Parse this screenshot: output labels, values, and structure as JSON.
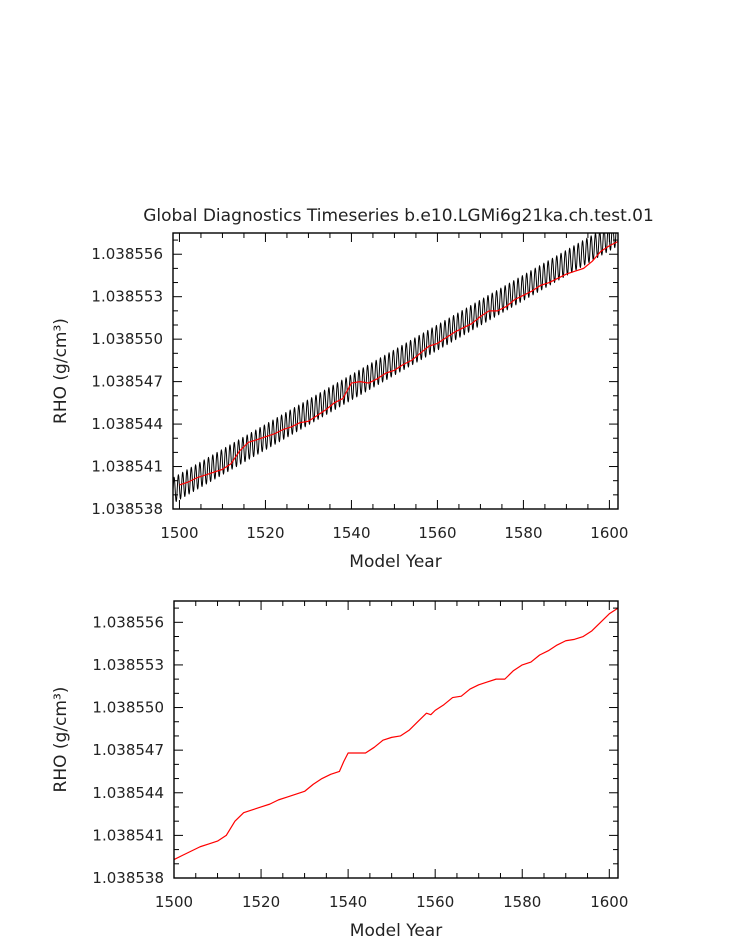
{
  "chart_data": [
    {
      "type": "line",
      "title": "Global Diagnostics Timeseries b.e10.LGMi6g21ka.ch.test.01",
      "xlabel": "Model Year",
      "ylabel": "RHO (g/cm³)",
      "xlim": [
        1498.5,
        1602
      ],
      "ylim": [
        1.038538,
        1.0385575
      ],
      "x_ticks": [
        1500,
        1520,
        1540,
        1560,
        1580,
        1600
      ],
      "y_ticks": [
        1.038538,
        1.038541,
        1.038544,
        1.038547,
        1.03855,
        1.038553,
        1.038556
      ],
      "y_tick_labels": [
        "1.038538",
        "1.038541",
        "1.038544",
        "1.038547",
        "1.038550",
        "1.038553",
        "1.038556"
      ],
      "series": [
        {
          "color": "#000000",
          "style": "monthly, oscillating about the annual mean",
          "x": [
            1498.5,
            1602
          ],
          "values": [
            1.0385393,
            1.0385575
          ],
          "amplitude": 9e-07
        },
        {
          "color": "#ff0000",
          "style": "annual mean",
          "x": [
            1500,
            1502,
            1504,
            1506,
            1508,
            1510,
            1512,
            1514,
            1516,
            1518,
            1520,
            1522,
            1524,
            1526,
            1528,
            1530,
            1532,
            1534,
            1536,
            1538,
            1540,
            1542,
            1544,
            1546,
            1548,
            1550,
            1552,
            1554,
            1556,
            1558,
            1560,
            1562,
            1564,
            1566,
            1568,
            1570,
            1572,
            1574,
            1576,
            1578,
            1580,
            1582,
            1584,
            1586,
            1588,
            1590,
            1592,
            1594,
            1596,
            1598,
            1600,
            1602
          ],
          "values": [
            1.0385397,
            1.0385399,
            1.0385402,
            1.0385404,
            1.0385406,
            1.0385408,
            1.0385412,
            1.0385421,
            1.0385427,
            1.0385429,
            1.0385431,
            1.0385433,
            1.0385436,
            1.0385438,
            1.0385441,
            1.0385442,
            1.0385446,
            1.038545,
            1.0385455,
            1.0385458,
            1.0385469,
            1.038547,
            1.0385469,
            1.0385472,
            1.0385476,
            1.0385478,
            1.0385482,
            1.0385485,
            1.038549,
            1.0385495,
            1.0385497,
            1.0385501,
            1.0385505,
            1.0385508,
            1.0385511,
            1.0385516,
            1.038552,
            1.038552,
            1.0385523,
            1.0385528,
            1.0385531,
            1.0385534,
            1.0385538,
            1.038554,
            1.0385543,
            1.0385546,
            1.0385548,
            1.038555,
            1.0385555,
            1.0385562,
            1.0385566,
            1.0385569
          ]
        }
      ]
    },
    {
      "type": "line",
      "title": "",
      "xlabel": "Model Year",
      "ylabel": "RHO (g/cm³)",
      "xlim": [
        1500,
        1602
      ],
      "ylim": [
        1.038538,
        1.0385575
      ],
      "x_ticks": [
        1500,
        1520,
        1540,
        1560,
        1580,
        1600
      ],
      "y_ticks": [
        1.038538,
        1.038541,
        1.038544,
        1.038547,
        1.03855,
        1.038553,
        1.038556
      ],
      "y_tick_labels": [
        "1.038538",
        "1.038541",
        "1.038544",
        "1.038547",
        "1.038550",
        "1.038553",
        "1.038556"
      ],
      "series": [
        {
          "color": "#ff0000",
          "style": "annual mean",
          "x": [
            1500,
            1502,
            1504,
            1506,
            1508,
            1510,
            1512,
            1514,
            1516,
            1518,
            1520,
            1522,
            1524,
            1526,
            1528,
            1530,
            1532,
            1534,
            1536,
            1538,
            1539,
            1540,
            1542,
            1544,
            1546,
            1548,
            1550,
            1552,
            1554,
            1556,
            1558,
            1559,
            1560,
            1562,
            1564,
            1566,
            1568,
            1570,
            1572,
            1574,
            1576,
            1578,
            1580,
            1582,
            1584,
            1586,
            1588,
            1590,
            1592,
            1594,
            1596,
            1598,
            1600,
            1602
          ],
          "values": [
            1.0385393,
            1.0385396,
            1.0385399,
            1.0385402,
            1.0385404,
            1.0385406,
            1.038541,
            1.038542,
            1.0385426,
            1.0385428,
            1.038543,
            1.0385432,
            1.0385435,
            1.0385437,
            1.0385439,
            1.0385441,
            1.0385446,
            1.038545,
            1.0385453,
            1.0385455,
            1.0385462,
            1.0385468,
            1.0385468,
            1.0385468,
            1.0385472,
            1.0385477,
            1.0385479,
            1.038548,
            1.0385484,
            1.038549,
            1.0385496,
            1.0385495,
            1.0385498,
            1.0385502,
            1.0385507,
            1.0385508,
            1.0385513,
            1.0385516,
            1.0385518,
            1.038552,
            1.038552,
            1.0385526,
            1.038553,
            1.0385532,
            1.0385537,
            1.038554,
            1.0385544,
            1.0385547,
            1.0385548,
            1.038555,
            1.0385554,
            1.038556,
            1.0385566,
            1.038557
          ]
        }
      ]
    }
  ]
}
